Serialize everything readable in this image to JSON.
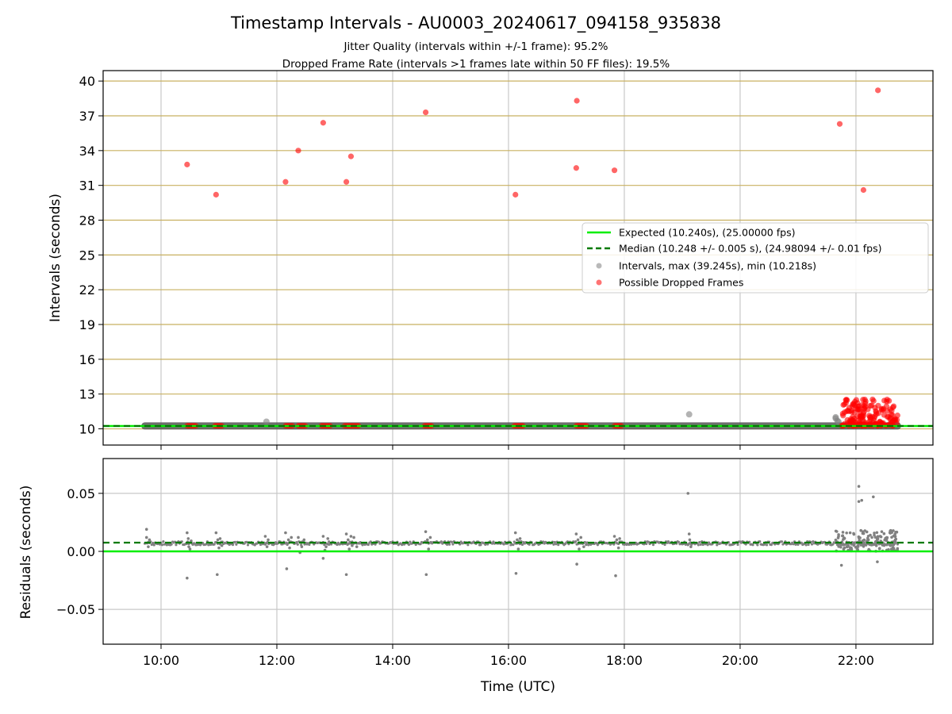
{
  "figure": {
    "title": "Timestamp Intervals - AU0003_20240617_094158_935838",
    "subtitle_1": "Jitter Quality (intervals within +/-1 frame): 95.2%",
    "subtitle_2": "Dropped Frame Rate (intervals >1 frames late within 50 FF files): 19.5%"
  },
  "colors": {
    "expected": "#00ee00",
    "median": "#007a00",
    "intervals": "#808080",
    "dropped": "#ff0000",
    "hgrid_top": "#c8b060",
    "grid": "#c8c8c8",
    "band": "#555555"
  },
  "chart_data": [
    {
      "type": "scatter",
      "panel": "top",
      "ylabel": "Intervals (seconds)",
      "xlim": [
        9.0,
        23.33
      ],
      "ylim": [
        8.6,
        40.9
      ],
      "x_unit": "hours (UTC)",
      "xticks": [
        10,
        12,
        14,
        16,
        18,
        20,
        22
      ],
      "xtick_labels": [
        "10:00",
        "12:00",
        "14:00",
        "16:00",
        "18:00",
        "20:00",
        "22:00"
      ],
      "yticks": [
        10,
        13,
        16,
        19,
        22,
        25,
        28,
        31,
        34,
        37,
        40
      ],
      "yticklabels": [
        "10",
        "13",
        "16",
        "19",
        "22",
        "25",
        "28",
        "31",
        "34",
        "37",
        "40"
      ],
      "grid": true,
      "legend_position": "center-right",
      "expected_interval": 10.24,
      "median_interval": 10.248,
      "interval_band_range": [
        9.72,
        22.72
      ],
      "legend": [
        "Expected (10.240s), (25.00000 fps)",
        "Median (10.248 +/- 0.005 s), (24.98094 +/- 0.01 fps)",
        "Intervals, max (39.245s), min (10.218s)",
        "Possible Dropped Frames"
      ],
      "series": [
        {
          "kind": "intervals",
          "points": [
            [
              11.82,
              10.62
            ],
            [
              19.12,
              11.25
            ],
            [
              21.65,
              10.9
            ],
            [
              21.65,
              11.0
            ],
            [
              21.68,
              10.7
            ],
            [
              21.7,
              10.6
            ]
          ]
        },
        {
          "kind": "dropped_frames",
          "points": [
            [
              10.45,
              32.8
            ],
            [
              10.95,
              30.2
            ],
            [
              12.15,
              31.3
            ],
            [
              12.37,
              34.0
            ],
            [
              12.8,
              36.4
            ],
            [
              13.2,
              31.3
            ],
            [
              13.28,
              33.5
            ],
            [
              14.57,
              37.3
            ],
            [
              16.12,
              30.2
            ],
            [
              17.17,
              32.5
            ],
            [
              17.18,
              38.3
            ],
            [
              17.83,
              32.3
            ],
            [
              21.72,
              36.3
            ],
            [
              22.13,
              30.6
            ],
            [
              22.38,
              39.2
            ],
            [
              10.45,
              10.26
            ],
            [
              10.48,
              10.26
            ],
            [
              10.51,
              10.26
            ],
            [
              10.54,
              10.26
            ],
            [
              10.57,
              10.26
            ],
            [
              10.6,
              10.26
            ],
            [
              10.93,
              10.26
            ],
            [
              10.96,
              10.26
            ],
            [
              10.99,
              10.26
            ],
            [
              11.02,
              10.26
            ],
            [
              11.05,
              10.26
            ],
            [
              12.15,
              10.26
            ],
            [
              12.18,
              10.26
            ],
            [
              12.21,
              10.26
            ],
            [
              12.24,
              10.26
            ],
            [
              12.27,
              10.26
            ],
            [
              12.37,
              10.26
            ],
            [
              12.4,
              10.26
            ],
            [
              12.43,
              10.26
            ],
            [
              12.46,
              10.26
            ],
            [
              12.49,
              10.26
            ],
            [
              12.77,
              10.26
            ],
            [
              12.8,
              10.26
            ],
            [
              12.83,
              10.26
            ],
            [
              12.86,
              10.26
            ],
            [
              12.89,
              10.26
            ],
            [
              12.92,
              10.26
            ],
            [
              13.17,
              10.26
            ],
            [
              13.2,
              10.26
            ],
            [
              13.23,
              10.26
            ],
            [
              13.26,
              10.26
            ],
            [
              13.29,
              10.26
            ],
            [
              13.32,
              10.26
            ],
            [
              13.35,
              10.26
            ],
            [
              13.38,
              10.26
            ],
            [
              13.41,
              10.26
            ],
            [
              14.55,
              10.26
            ],
            [
              14.58,
              10.26
            ],
            [
              14.61,
              10.26
            ],
            [
              14.64,
              10.26
            ],
            [
              14.67,
              10.26
            ],
            [
              16.1,
              10.26
            ],
            [
              16.13,
              10.26
            ],
            [
              16.16,
              10.26
            ],
            [
              16.19,
              10.26
            ],
            [
              16.22,
              10.26
            ],
            [
              16.25,
              10.26
            ],
            [
              17.17,
              10.26
            ],
            [
              17.2,
              10.26
            ],
            [
              17.23,
              10.26
            ],
            [
              17.26,
              10.26
            ],
            [
              17.29,
              10.26
            ],
            [
              17.32,
              10.26
            ],
            [
              17.35,
              10.26
            ],
            [
              17.83,
              10.26
            ],
            [
              17.86,
              10.26
            ],
            [
              17.89,
              10.26
            ],
            [
              17.92,
              10.26
            ],
            [
              17.95,
              10.26
            ]
          ],
          "cluster": {
            "x_range": [
              21.75,
              22.72
            ],
            "y_range": [
              10.26,
              12.6
            ],
            "count": 180,
            "note": "dense cluster of dropped-frame intervals"
          }
        }
      ]
    },
    {
      "type": "scatter",
      "panel": "bottom",
      "xlabel": "Time (UTC)",
      "ylabel": "Residuals (seconds)",
      "xlim": [
        9.0,
        23.33
      ],
      "ylim": [
        -0.08,
        0.08
      ],
      "xticks": [
        10,
        12,
        14,
        16,
        18,
        20,
        22
      ],
      "xtick_labels": [
        "10:00",
        "12:00",
        "14:00",
        "16:00",
        "18:00",
        "20:00",
        "22:00"
      ],
      "yticks": [
        0.05,
        0.0,
        -0.05
      ],
      "yticklabels": [
        "0.05",
        "0.00",
        "−0.05"
      ],
      "grid": true,
      "expected_residual": 0.0,
      "median_residual": 0.0075,
      "series": [
        {
          "kind": "residuals",
          "baseline": [
            9.72,
            22.72,
            0.007
          ],
          "points": [
            [
              9.75,
              0.019
            ],
            [
              9.75,
              0.012
            ],
            [
              9.78,
              0.004
            ],
            [
              9.8,
              0.01
            ],
            [
              10.45,
              -0.023
            ],
            [
              10.45,
              0.016
            ],
            [
              10.47,
              0.011
            ],
            [
              10.48,
              0.004
            ],
            [
              10.5,
              0.002
            ],
            [
              10.52,
              0.009
            ],
            [
              10.55,
              0.006
            ],
            [
              10.95,
              0.016
            ],
            [
              10.97,
              -0.02
            ],
            [
              10.98,
              0.01
            ],
            [
              11.0,
              0.003
            ],
            [
              11.02,
              0.011
            ],
            [
              11.05,
              0.005
            ],
            [
              11.8,
              0.013
            ],
            [
              11.83,
              0.004
            ],
            [
              11.85,
              0.01
            ],
            [
              12.15,
              0.016
            ],
            [
              12.17,
              -0.015
            ],
            [
              12.2,
              0.01
            ],
            [
              12.22,
              0.003
            ],
            [
              12.25,
              0.012
            ],
            [
              12.37,
              0.012
            ],
            [
              12.4,
              -0.001
            ],
            [
              12.43,
              0.004
            ],
            [
              12.47,
              0.01
            ],
            [
              12.8,
              -0.006
            ],
            [
              12.8,
              0.013
            ],
            [
              12.83,
              0.001
            ],
            [
              12.85,
              0.004
            ],
            [
              12.88,
              0.011
            ],
            [
              12.9,
              0.006
            ],
            [
              13.2,
              0.015
            ],
            [
              13.2,
              -0.02
            ],
            [
              13.23,
              0.01
            ],
            [
              13.25,
              0.002
            ],
            [
              13.28,
              0.013
            ],
            [
              13.3,
              0.005
            ],
            [
              13.33,
              0.012
            ],
            [
              13.38,
              0.004
            ],
            [
              14.57,
              0.017
            ],
            [
              14.58,
              -0.02
            ],
            [
              14.6,
              0.01
            ],
            [
              14.62,
              0.002
            ],
            [
              14.65,
              0.012
            ],
            [
              16.12,
              0.016
            ],
            [
              16.13,
              -0.019
            ],
            [
              16.15,
              0.01
            ],
            [
              16.17,
              0.002
            ],
            [
              16.2,
              0.011
            ],
            [
              17.17,
              0.015
            ],
            [
              17.18,
              -0.011
            ],
            [
              17.2,
              0.01
            ],
            [
              17.22,
              0.002
            ],
            [
              17.25,
              0.012
            ],
            [
              17.3,
              0.004
            ],
            [
              17.83,
              0.013
            ],
            [
              17.85,
              -0.021
            ],
            [
              17.87,
              0.01
            ],
            [
              17.9,
              0.003
            ],
            [
              17.92,
              0.011
            ],
            [
              19.1,
              0.05
            ],
            [
              19.12,
              0.015
            ],
            [
              19.13,
              0.01
            ],
            [
              19.15,
              0.004
            ],
            [
              21.7,
              0.013
            ],
            [
              21.75,
              -0.012
            ],
            [
              21.8,
              0.003
            ],
            [
              21.9,
              0.016
            ],
            [
              22.05,
              0.056
            ],
            [
              22.05,
              0.043
            ],
            [
              22.1,
              0.044
            ],
            [
              22.3,
              0.047
            ],
            [
              22.37,
              -0.009
            ],
            [
              22.6,
              0.018
            ]
          ],
          "cluster": {
            "x_range": [
              21.65,
              22.72
            ],
            "y_range": [
              0.0,
              0.018
            ],
            "count": 140,
            "note": "dense residual cluster"
          }
        }
      ]
    }
  ]
}
